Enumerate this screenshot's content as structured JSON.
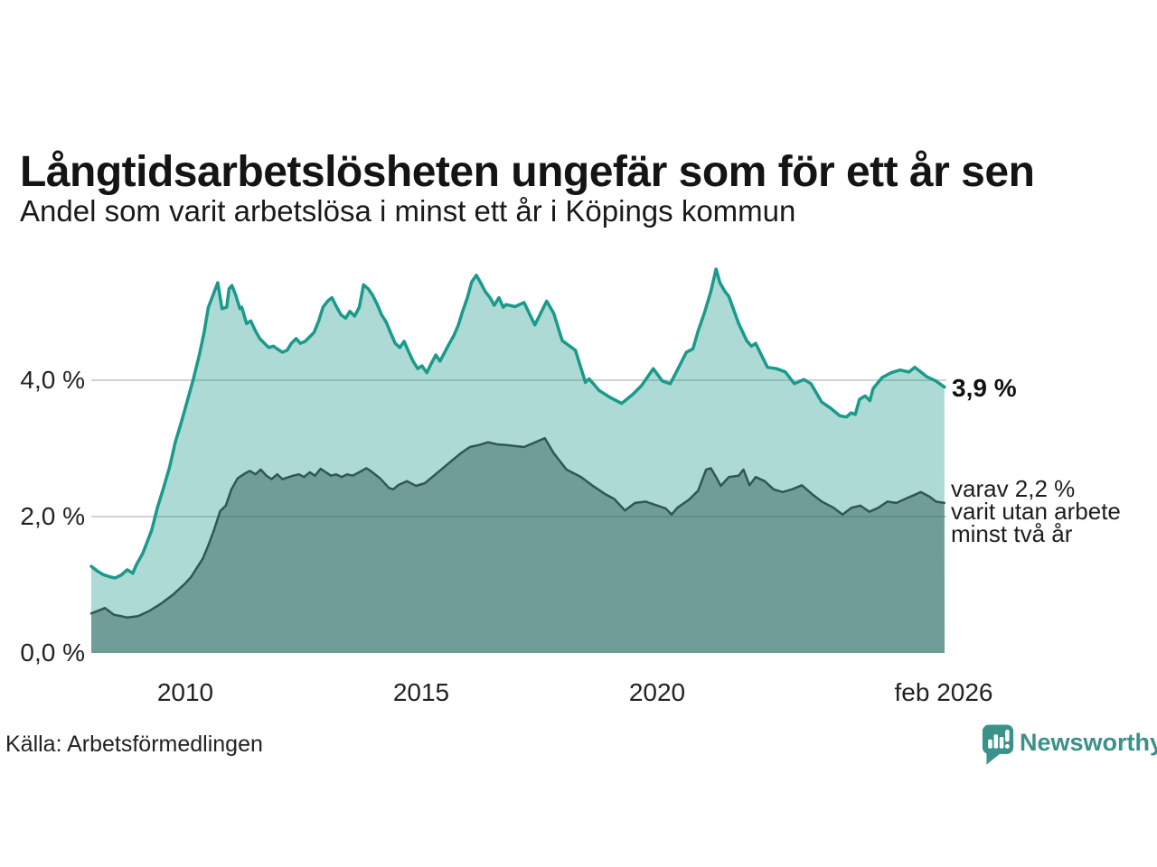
{
  "header": {
    "title": "Långtidsarbetslösheten ungefär som för ett år sen",
    "subtitle": "Andel som varit arbetslösa i minst ett år i Köpings kommun"
  },
  "annotations": {
    "latest_total": "3,9 %",
    "latest_two_years": "varav 2,2 %\nvarit utan arbete\nminst två år"
  },
  "footer": {
    "source": "Källa: Arbetsförmedlingen",
    "brand": "Newsworthy"
  },
  "colors": {
    "line_one_year": "#199a8b",
    "fill_one_year": "rgba(22,150,134,0.35)",
    "line_two_years": "#2d5951",
    "fill_two_years": "rgba(45,90,82,0.47)",
    "gridline": "#d2d2d2",
    "brand_teal": "#3a928a",
    "text": "#1a1a1a"
  },
  "chart_data": {
    "type": "area",
    "title": "Långtidsarbetslösheten ungefär som för ett år sen",
    "subtitle": "Andel som varit arbetslösa i minst ett år i Köpings kommun",
    "unit": "%",
    "x_range": [
      2008.0,
      2026.083
    ],
    "ylim": [
      0,
      5.8
    ],
    "y_gridlines": [
      2,
      4
    ],
    "y_tick_labels": [
      "4,0 %",
      "2,0 %",
      "0,0 %"
    ],
    "x_tick_values": [
      2010,
      2015,
      2020,
      2026.083
    ],
    "x_tick_labels": [
      "2010",
      "2015",
      "2020",
      "feb 2026"
    ],
    "legend_position": "none",
    "series": [
      {
        "name": "Andel arbetslösa minst ett år",
        "label": "3,9 %",
        "color": "#199a8b",
        "fill": "rgba(22,150,134,0.35)",
        "stroke_width": 3.5,
        "points": [
          [
            2008.0,
            1.27
          ],
          [
            2008.13,
            1.2
          ],
          [
            2008.25,
            1.15
          ],
          [
            2008.38,
            1.12
          ],
          [
            2008.5,
            1.1
          ],
          [
            2008.63,
            1.14
          ],
          [
            2008.76,
            1.22
          ],
          [
            2008.88,
            1.17
          ],
          [
            2008.96,
            1.3
          ],
          [
            2009.09,
            1.46
          ],
          [
            2009.28,
            1.8
          ],
          [
            2009.4,
            2.13
          ],
          [
            2009.53,
            2.42
          ],
          [
            2009.66,
            2.73
          ],
          [
            2009.78,
            3.09
          ],
          [
            2009.91,
            3.39
          ],
          [
            2010.04,
            3.71
          ],
          [
            2010.16,
            4.01
          ],
          [
            2010.29,
            4.37
          ],
          [
            2010.39,
            4.7
          ],
          [
            2010.48,
            5.07
          ],
          [
            2010.58,
            5.25
          ],
          [
            2010.68,
            5.43
          ],
          [
            2010.77,
            5.05
          ],
          [
            2010.87,
            5.07
          ],
          [
            2010.92,
            5.34
          ],
          [
            2010.98,
            5.39
          ],
          [
            2011.06,
            5.25
          ],
          [
            2011.15,
            5.05
          ],
          [
            2011.19,
            5.07
          ],
          [
            2011.29,
            4.83
          ],
          [
            2011.38,
            4.87
          ],
          [
            2011.48,
            4.72
          ],
          [
            2011.57,
            4.61
          ],
          [
            2011.67,
            4.54
          ],
          [
            2011.76,
            4.48
          ],
          [
            2011.86,
            4.5
          ],
          [
            2011.96,
            4.45
          ],
          [
            2012.05,
            4.41
          ],
          [
            2012.15,
            4.44
          ],
          [
            2012.24,
            4.54
          ],
          [
            2012.34,
            4.61
          ],
          [
            2012.43,
            4.54
          ],
          [
            2012.53,
            4.57
          ],
          [
            2012.62,
            4.63
          ],
          [
            2012.72,
            4.7
          ],
          [
            2012.82,
            4.87
          ],
          [
            2012.91,
            5.07
          ],
          [
            2013.01,
            5.16
          ],
          [
            2013.1,
            5.21
          ],
          [
            2013.2,
            5.07
          ],
          [
            2013.29,
            4.96
          ],
          [
            2013.39,
            4.91
          ],
          [
            2013.48,
            5.01
          ],
          [
            2013.58,
            4.94
          ],
          [
            2013.68,
            5.07
          ],
          [
            2013.77,
            5.4
          ],
          [
            2013.87,
            5.34
          ],
          [
            2013.96,
            5.25
          ],
          [
            2014.06,
            5.11
          ],
          [
            2014.15,
            4.96
          ],
          [
            2014.25,
            4.85
          ],
          [
            2014.34,
            4.7
          ],
          [
            2014.44,
            4.54
          ],
          [
            2014.54,
            4.48
          ],
          [
            2014.63,
            4.57
          ],
          [
            2014.73,
            4.41
          ],
          [
            2014.82,
            4.28
          ],
          [
            2014.92,
            4.17
          ],
          [
            2015.01,
            4.21
          ],
          [
            2015.11,
            4.11
          ],
          [
            2015.2,
            4.24
          ],
          [
            2015.3,
            4.37
          ],
          [
            2015.39,
            4.28
          ],
          [
            2015.49,
            4.41
          ],
          [
            2015.59,
            4.54
          ],
          [
            2015.68,
            4.65
          ],
          [
            2015.78,
            4.81
          ],
          [
            2015.87,
            5.01
          ],
          [
            2015.97,
            5.21
          ],
          [
            2016.06,
            5.44
          ],
          [
            2016.16,
            5.54
          ],
          [
            2016.25,
            5.43
          ],
          [
            2016.35,
            5.3
          ],
          [
            2016.45,
            5.21
          ],
          [
            2016.54,
            5.1
          ],
          [
            2016.64,
            5.21
          ],
          [
            2016.73,
            5.07
          ],
          [
            2016.79,
            5.11
          ],
          [
            2016.98,
            5.08
          ],
          [
            2017.17,
            5.14
          ],
          [
            2017.4,
            4.81
          ],
          [
            2017.65,
            5.16
          ],
          [
            2017.8,
            4.98
          ],
          [
            2017.98,
            4.58
          ],
          [
            2018.26,
            4.44
          ],
          [
            2018.47,
            3.97
          ],
          [
            2018.55,
            4.02
          ],
          [
            2018.64,
            3.95
          ],
          [
            2018.76,
            3.85
          ],
          [
            2018.99,
            3.75
          ],
          [
            2019.24,
            3.66
          ],
          [
            2019.47,
            3.79
          ],
          [
            2019.66,
            3.92
          ],
          [
            2019.91,
            4.17
          ],
          [
            2020.1,
            3.99
          ],
          [
            2020.27,
            3.95
          ],
          [
            2020.42,
            4.15
          ],
          [
            2020.61,
            4.41
          ],
          [
            2020.75,
            4.46
          ],
          [
            2020.86,
            4.72
          ],
          [
            2020.99,
            4.98
          ],
          [
            2021.13,
            5.3
          ],
          [
            2021.24,
            5.63
          ],
          [
            2021.32,
            5.43
          ],
          [
            2021.43,
            5.3
          ],
          [
            2021.51,
            5.23
          ],
          [
            2021.72,
            4.83
          ],
          [
            2021.89,
            4.58
          ],
          [
            2021.99,
            4.5
          ],
          [
            2022.08,
            4.54
          ],
          [
            2022.2,
            4.37
          ],
          [
            2022.33,
            4.19
          ],
          [
            2022.52,
            4.17
          ],
          [
            2022.71,
            4.12
          ],
          [
            2022.9,
            3.95
          ],
          [
            2023.1,
            4.01
          ],
          [
            2023.25,
            3.95
          ],
          [
            2023.48,
            3.68
          ],
          [
            2023.67,
            3.59
          ],
          [
            2023.86,
            3.48
          ],
          [
            2024.0,
            3.46
          ],
          [
            2024.1,
            3.52
          ],
          [
            2024.19,
            3.5
          ],
          [
            2024.28,
            3.72
          ],
          [
            2024.4,
            3.77
          ],
          [
            2024.5,
            3.7
          ],
          [
            2024.57,
            3.88
          ],
          [
            2024.76,
            4.04
          ],
          [
            2024.95,
            4.11
          ],
          [
            2025.14,
            4.15
          ],
          [
            2025.33,
            4.12
          ],
          [
            2025.45,
            4.19
          ],
          [
            2025.58,
            4.12
          ],
          [
            2025.71,
            4.05
          ],
          [
            2025.9,
            3.99
          ],
          [
            2026.08,
            3.9
          ]
        ]
      },
      {
        "name": "Andel utan arbete minst två år",
        "label": "varav 2,2 % varit utan arbete minst två år",
        "color": "#2d5951",
        "fill": "rgba(45,90,82,0.47)",
        "stroke_width": 2.5,
        "points": [
          [
            2008.0,
            0.58
          ],
          [
            2008.15,
            0.62
          ],
          [
            2008.29,
            0.66
          ],
          [
            2008.48,
            0.56
          ],
          [
            2008.63,
            0.54
          ],
          [
            2008.76,
            0.52
          ],
          [
            2008.99,
            0.54
          ],
          [
            2009.24,
            0.62
          ],
          [
            2009.49,
            0.73
          ],
          [
            2009.74,
            0.86
          ],
          [
            2009.99,
            1.02
          ],
          [
            2010.12,
            1.12
          ],
          [
            2010.24,
            1.25
          ],
          [
            2010.36,
            1.38
          ],
          [
            2010.48,
            1.58
          ],
          [
            2010.6,
            1.8
          ],
          [
            2010.73,
            2.08
          ],
          [
            2010.85,
            2.16
          ],
          [
            2010.97,
            2.4
          ],
          [
            2011.1,
            2.56
          ],
          [
            2011.25,
            2.63
          ],
          [
            2011.36,
            2.67
          ],
          [
            2011.48,
            2.62
          ],
          [
            2011.59,
            2.69
          ],
          [
            2011.71,
            2.6
          ],
          [
            2011.82,
            2.55
          ],
          [
            2011.94,
            2.62
          ],
          [
            2012.05,
            2.55
          ],
          [
            2012.28,
            2.6
          ],
          [
            2012.4,
            2.62
          ],
          [
            2012.51,
            2.58
          ],
          [
            2012.63,
            2.65
          ],
          [
            2012.74,
            2.6
          ],
          [
            2012.86,
            2.7
          ],
          [
            2012.97,
            2.65
          ],
          [
            2013.08,
            2.6
          ],
          [
            2013.19,
            2.62
          ],
          [
            2013.31,
            2.58
          ],
          [
            2013.42,
            2.62
          ],
          [
            2013.54,
            2.6
          ],
          [
            2013.73,
            2.67
          ],
          [
            2013.83,
            2.71
          ],
          [
            2013.92,
            2.67
          ],
          [
            2014.12,
            2.56
          ],
          [
            2014.31,
            2.42
          ],
          [
            2014.4,
            2.4
          ],
          [
            2014.5,
            2.46
          ],
          [
            2014.69,
            2.52
          ],
          [
            2014.88,
            2.45
          ],
          [
            2015.07,
            2.49
          ],
          [
            2015.26,
            2.6
          ],
          [
            2015.45,
            2.71
          ],
          [
            2015.64,
            2.82
          ],
          [
            2015.83,
            2.93
          ],
          [
            2016.02,
            3.02
          ],
          [
            2016.22,
            3.05
          ],
          [
            2016.41,
            3.09
          ],
          [
            2016.6,
            3.06
          ],
          [
            2016.79,
            3.05
          ],
          [
            2017.17,
            3.02
          ],
          [
            2017.61,
            3.15
          ],
          [
            2017.8,
            2.93
          ],
          [
            2018.07,
            2.69
          ],
          [
            2018.38,
            2.58
          ],
          [
            2018.61,
            2.46
          ],
          [
            2018.89,
            2.33
          ],
          [
            2019.08,
            2.26
          ],
          [
            2019.31,
            2.09
          ],
          [
            2019.52,
            2.2
          ],
          [
            2019.75,
            2.22
          ],
          [
            2020.17,
            2.12
          ],
          [
            2020.3,
            2.03
          ],
          [
            2020.42,
            2.13
          ],
          [
            2020.67,
            2.25
          ],
          [
            2020.86,
            2.38
          ],
          [
            2021.03,
            2.69
          ],
          [
            2021.13,
            2.71
          ],
          [
            2021.24,
            2.58
          ],
          [
            2021.34,
            2.45
          ],
          [
            2021.51,
            2.58
          ],
          [
            2021.72,
            2.6
          ],
          [
            2021.82,
            2.69
          ],
          [
            2021.95,
            2.46
          ],
          [
            2022.08,
            2.58
          ],
          [
            2022.27,
            2.52
          ],
          [
            2022.46,
            2.4
          ],
          [
            2022.65,
            2.36
          ],
          [
            2022.85,
            2.4
          ],
          [
            2023.06,
            2.46
          ],
          [
            2023.29,
            2.32
          ],
          [
            2023.48,
            2.22
          ],
          [
            2023.73,
            2.13
          ],
          [
            2023.92,
            2.03
          ],
          [
            2024.11,
            2.13
          ],
          [
            2024.3,
            2.16
          ],
          [
            2024.49,
            2.07
          ],
          [
            2024.68,
            2.13
          ],
          [
            2024.87,
            2.22
          ],
          [
            2025.06,
            2.2
          ],
          [
            2025.25,
            2.26
          ],
          [
            2025.45,
            2.32
          ],
          [
            2025.58,
            2.36
          ],
          [
            2025.77,
            2.29
          ],
          [
            2025.9,
            2.22
          ],
          [
            2026.08,
            2.2
          ]
        ]
      }
    ]
  }
}
